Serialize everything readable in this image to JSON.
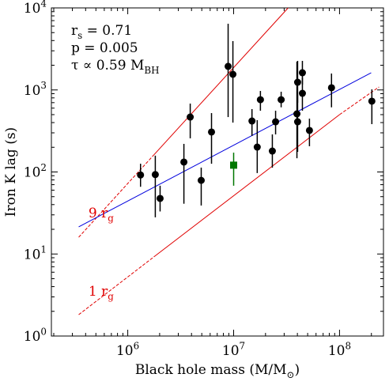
{
  "chart_data": {
    "type": "scatter",
    "xlabel": [
      "Black hole mass (M/M",
      "⊙",
      ")"
    ],
    "ylabel": "Iron K lag (s)",
    "xlog": true,
    "ylog": true,
    "xlim": [
      190000,
      260000000
    ],
    "ylim": [
      1,
      10000
    ],
    "xticks": [
      {
        "value": 1000000,
        "label": [
          "10",
          "6"
        ]
      },
      {
        "value": 10000000,
        "label": [
          "10",
          "7"
        ]
      },
      {
        "value": 100000000,
        "label": [
          "10",
          "8"
        ]
      }
    ],
    "yticks": [
      {
        "value": 1,
        "label": [
          "10",
          "0"
        ]
      },
      {
        "value": 10,
        "label": [
          "10",
          "1"
        ]
      },
      {
        "value": 100,
        "label": [
          "10",
          "2"
        ]
      },
      {
        "value": 1000,
        "label": [
          "10",
          "3"
        ]
      },
      {
        "value": 10000,
        "label": [
          "10",
          "4"
        ]
      }
    ],
    "stats": [
      [
        "r",
        "s",
        " = 0.71"
      ],
      [
        "p = 0.005"
      ],
      [
        "τ ∝ 0.59 M",
        "BH"
      ]
    ],
    "annotations": [
      {
        "text": [
          "9 r",
          "g"
        ],
        "x": 560000,
        "y": 28,
        "color": "#e00000"
      },
      {
        "text": [
          "1 r",
          "g"
        ],
        "x": 560000,
        "y": 3.1,
        "color": "#e00000"
      }
    ],
    "lines": [
      {
        "color": "#e00000",
        "dash": true,
        "x": [
          344000,
          1760000
        ],
        "values": [
          16,
          161
        ]
      },
      {
        "color": "#e00000",
        "dash": false,
        "x": [
          1760000,
          32700000
        ],
        "values": [
          161,
          10000
        ]
      },
      {
        "color": "#e00000",
        "dash": true,
        "x": [
          344000,
          1760000
        ],
        "values": [
          1.82,
          9.2
        ]
      },
      {
        "color": "#e00000",
        "dash": false,
        "x": [
          1760000,
          100000000
        ],
        "values": [
          9.2,
          500
        ]
      },
      {
        "color": "#e00000",
        "dash": true,
        "x": [
          100000000,
          236000000
        ],
        "values": [
          500,
          1087
        ]
      },
      {
        "color": "#0000dd",
        "dash": false,
        "x": [
          344000,
          199000000
        ],
        "values": [
          21.4,
          1620
        ]
      }
    ],
    "series": [
      {
        "color": "#000000",
        "marker": "circle",
        "x": [
          1320000,
          1820000,
          2020000,
          3390000,
          3890000,
          4940000,
          6180000,
          8870000,
          9840000,
          14900000,
          16700000,
          17900000,
          23200000,
          24900000,
          28100000,
          39600000,
          40200000,
          40200000,
          44600000,
          44600000,
          52000000,
          84000000,
          202000000
        ],
        "values": [
          92,
          93,
          47.6,
          132,
          467,
          79,
          307,
          1940,
          1550,
          418,
          201,
          760,
          180,
          409,
          760,
          511,
          409,
          1240,
          1620,
          909,
          321,
          1064,
          729
        ],
        "lower": [
          66,
          28,
          33,
          41,
          257,
          39,
          126,
          467,
          400,
          275,
          97,
          558,
          113,
          287,
          614,
          147,
          176,
          697,
          1160,
          558,
          206,
          614,
          383
        ],
        "upper": [
          126,
          158,
          68,
          220,
          682,
          113,
          522,
          6410,
          3940,
          584,
          428,
          972,
          287,
          558,
          951,
          2210,
          871,
          2260,
          2260,
          1420,
          447,
          1585,
          1016
        ]
      },
      {
        "color": "#007700",
        "marker": "square",
        "x": [
          10000000
        ],
        "values": [
          121
        ],
        "lower": [
          68
        ],
        "upper": [
          172
        ]
      }
    ]
  }
}
